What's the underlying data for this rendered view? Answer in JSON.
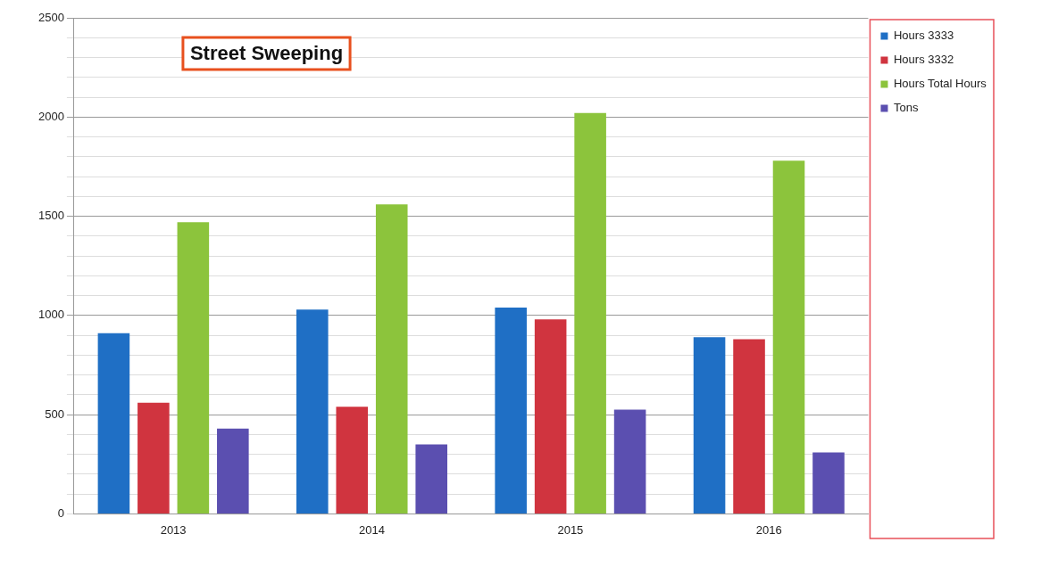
{
  "chart_data": {
    "type": "bar",
    "title": "Street Sweeping",
    "categories": [
      "2013",
      "2014",
      "2015",
      "2016"
    ],
    "series": [
      {
        "name": "Hours 3333",
        "color": "#1f6fc5",
        "values": [
          910,
          1030,
          1040,
          890
        ]
      },
      {
        "name": "Hours 3332",
        "color": "#d0343f",
        "values": [
          560,
          540,
          980,
          880
        ]
      },
      {
        "name": "Hours Total Hours",
        "color": "#8cc43c",
        "values": [
          1470,
          1560,
          2020,
          1780
        ]
      },
      {
        "name": "Tons",
        "color": "#5b4fb0",
        "values": [
          430,
          350,
          525,
          310
        ]
      }
    ],
    "ylim": [
      0,
      2500
    ],
    "yticks": [
      0,
      {
        "value": 100,
        "label": null
      },
      {
        "value": 200,
        "label": null
      },
      {
        "value": 300,
        "label": null
      },
      {
        "value": 400,
        "label": null
      },
      500,
      {
        "value": 600,
        "label": null
      },
      {
        "value": 700,
        "label": null
      },
      {
        "value": 800,
        "label": null
      },
      {
        "value": 900,
        "label": null
      },
      1000,
      {
        "value": 1100,
        "label": null
      },
      {
        "value": 1200,
        "label": null
      },
      {
        "value": 1300,
        "label": null
      },
      {
        "value": 1400,
        "label": null
      },
      1500,
      {
        "value": 1600,
        "label": null
      },
      {
        "value": 1700,
        "label": null
      },
      {
        "value": 1800,
        "label": null
      },
      {
        "value": 1900,
        "label": null
      },
      2000,
      {
        "value": 2100,
        "label": null
      },
      {
        "value": 2200,
        "label": null
      },
      {
        "value": 2300,
        "label": null
      },
      {
        "value": 2400,
        "label": null
      },
      2500
    ],
    "grid": "y",
    "legend": "top right"
  }
}
